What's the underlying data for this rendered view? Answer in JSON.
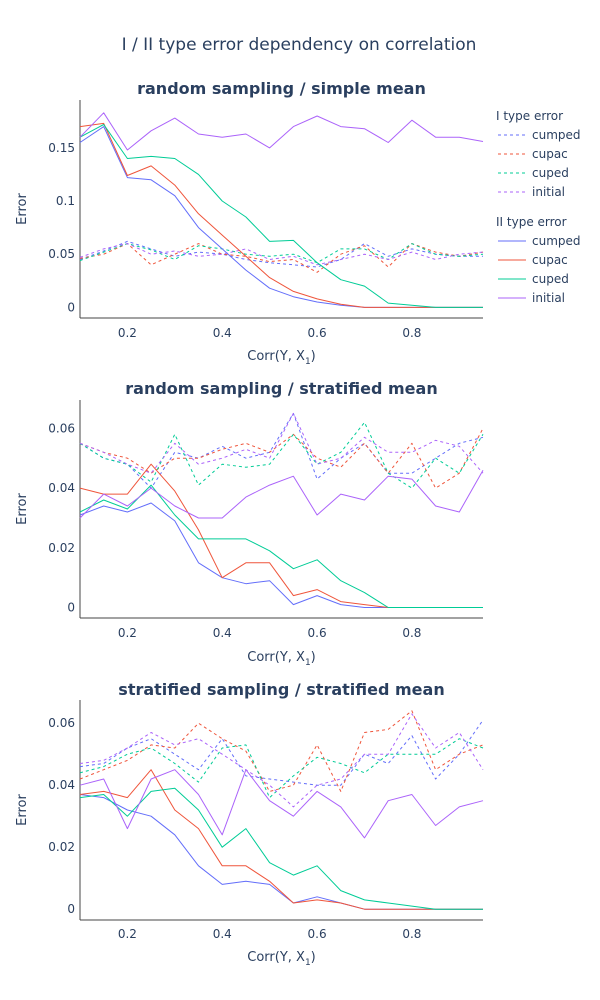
{
  "title": "I / II type error dependency on correlation",
  "colors": {
    "cumped": "#636efa",
    "cupac": "#ef553b",
    "cuped": "#00cc96",
    "initial": "#ab63fa"
  },
  "legend": {
    "group1_title": "I type error",
    "group2_title": "II type error",
    "entries": [
      "cumped",
      "cupac",
      "cuped",
      "initial"
    ],
    "placement": "right"
  },
  "chart_data": [
    {
      "type": "line",
      "title": "random sampling / simple mean",
      "xlabel_base": "Corr(Y, X",
      "xlabel_sub": "1",
      "xlabel_close": ")",
      "ylabel": "Error",
      "xlim": [
        0.1,
        0.95
      ],
      "ylim": [
        -0.01,
        0.195
      ],
      "xticks": [
        0.2,
        0.4,
        0.6,
        0.8
      ],
      "xtick_labels": [
        "0.2",
        "0.4",
        "0.6",
        "0.8"
      ],
      "yticks": [
        0,
        0.05,
        0.1,
        0.15
      ],
      "ytick_labels": [
        "0",
        "0.05",
        "0.1",
        "0.15"
      ],
      "x": [
        0.1,
        0.15,
        0.2,
        0.25,
        0.3,
        0.35,
        0.4,
        0.45,
        0.5,
        0.55,
        0.6,
        0.65,
        0.7,
        0.75,
        0.8,
        0.85,
        0.9,
        0.95
      ],
      "series": [
        {
          "name": "cumped",
          "group": "I type error",
          "dash": true,
          "values": [
            0.045,
            0.053,
            0.062,
            0.055,
            0.048,
            0.052,
            0.05,
            0.045,
            0.042,
            0.04,
            0.038,
            0.045,
            0.06,
            0.048,
            0.055,
            0.05,
            0.048,
            0.048
          ]
        },
        {
          "name": "cupac",
          "group": "I type error",
          "dash": true,
          "values": [
            0.046,
            0.05,
            0.06,
            0.04,
            0.05,
            0.06,
            0.05,
            0.048,
            0.043,
            0.045,
            0.033,
            0.05,
            0.058,
            0.038,
            0.06,
            0.052,
            0.048,
            0.052
          ]
        },
        {
          "name": "cuped",
          "group": "I type error",
          "dash": true,
          "values": [
            0.044,
            0.052,
            0.06,
            0.054,
            0.045,
            0.058,
            0.055,
            0.05,
            0.048,
            0.05,
            0.042,
            0.055,
            0.055,
            0.045,
            0.06,
            0.05,
            0.048,
            0.05
          ]
        },
        {
          "name": "initial",
          "group": "I type error",
          "dash": true,
          "values": [
            0.047,
            0.055,
            0.06,
            0.05,
            0.053,
            0.048,
            0.05,
            0.055,
            0.045,
            0.048,
            0.04,
            0.045,
            0.05,
            0.045,
            0.052,
            0.045,
            0.05,
            0.052
          ]
        },
        {
          "name": "cumped",
          "group": "II type error",
          "dash": false,
          "values": [
            0.155,
            0.17,
            0.122,
            0.12,
            0.105,
            0.075,
            0.055,
            0.035,
            0.018,
            0.01,
            0.005,
            0.002,
            0,
            0,
            0,
            0,
            0,
            0
          ]
        },
        {
          "name": "cupac",
          "group": "II type error",
          "dash": false,
          "values": [
            0.17,
            0.173,
            0.124,
            0.133,
            0.115,
            0.088,
            0.068,
            0.048,
            0.028,
            0.015,
            0.008,
            0.003,
            0,
            0,
            0,
            0,
            0,
            0
          ]
        },
        {
          "name": "cuped",
          "group": "II type error",
          "dash": false,
          "values": [
            0.16,
            0.172,
            0.14,
            0.142,
            0.14,
            0.125,
            0.1,
            0.085,
            0.062,
            0.063,
            0.042,
            0.026,
            0.02,
            0.004,
            0.002,
            0,
            0,
            0
          ]
        },
        {
          "name": "initial",
          "group": "II type error",
          "dash": false,
          "values": [
            0.16,
            0.183,
            0.148,
            0.166,
            0.178,
            0.163,
            0.16,
            0.163,
            0.15,
            0.17,
            0.18,
            0.17,
            0.168,
            0.155,
            0.176,
            0.16,
            0.16,
            0.156
          ]
        }
      ]
    },
    {
      "type": "line",
      "title": "random sampling / stratified mean",
      "xlabel_base": "Corr(Y, X",
      "xlabel_sub": "1",
      "xlabel_close": ")",
      "ylabel": "Error",
      "xlim": [
        0.1,
        0.95
      ],
      "ylim": [
        -0.0035,
        0.0695
      ],
      "xticks": [
        0.2,
        0.4,
        0.6,
        0.8
      ],
      "xtick_labels": [
        "0.2",
        "0.4",
        "0.6",
        "0.8"
      ],
      "yticks": [
        0,
        0.02,
        0.04,
        0.06
      ],
      "ytick_labels": [
        "0",
        "0.02",
        "0.04",
        "0.06"
      ],
      "x": [
        0.1,
        0.15,
        0.2,
        0.25,
        0.3,
        0.35,
        0.4,
        0.45,
        0.5,
        0.55,
        0.6,
        0.65,
        0.7,
        0.75,
        0.8,
        0.85,
        0.9,
        0.95
      ],
      "series": [
        {
          "name": "cumped",
          "group": "I type error",
          "dash": true,
          "values": [
            0.055,
            0.05,
            0.048,
            0.04,
            0.052,
            0.05,
            0.054,
            0.05,
            0.052,
            0.065,
            0.043,
            0.05,
            0.055,
            0.045,
            0.045,
            0.05,
            0.055,
            0.057
          ]
        },
        {
          "name": "cupac",
          "group": "I type error",
          "dash": true,
          "values": [
            0.055,
            0.052,
            0.05,
            0.045,
            0.05,
            0.05,
            0.053,
            0.055,
            0.052,
            0.058,
            0.05,
            0.047,
            0.055,
            0.045,
            0.055,
            0.04,
            0.045,
            0.06
          ]
        },
        {
          "name": "cuped",
          "group": "I type error",
          "dash": true,
          "values": [
            0.055,
            0.05,
            0.048,
            0.042,
            0.058,
            0.041,
            0.048,
            0.047,
            0.048,
            0.058,
            0.048,
            0.052,
            0.062,
            0.045,
            0.04,
            0.05,
            0.045,
            0.058
          ]
        },
        {
          "name": "initial",
          "group": "I type error",
          "dash": true,
          "values": [
            0.055,
            0.052,
            0.048,
            0.045,
            0.055,
            0.048,
            0.05,
            0.053,
            0.05,
            0.065,
            0.048,
            0.05,
            0.057,
            0.052,
            0.052,
            0.056,
            0.054,
            0.045
          ]
        },
        {
          "name": "cumped",
          "group": "II type error",
          "dash": false,
          "values": [
            0.031,
            0.034,
            0.032,
            0.035,
            0.029,
            0.015,
            0.01,
            0.008,
            0.009,
            0.001,
            0.004,
            0.001,
            0,
            0,
            0,
            0,
            0,
            0
          ]
        },
        {
          "name": "cupac",
          "group": "II type error",
          "dash": false,
          "values": [
            0.04,
            0.038,
            0.038,
            0.048,
            0.039,
            0.026,
            0.01,
            0.015,
            0.015,
            0.004,
            0.006,
            0.002,
            0.001,
            0,
            0,
            0,
            0,
            0
          ]
        },
        {
          "name": "cuped",
          "group": "II type error",
          "dash": false,
          "values": [
            0.032,
            0.036,
            0.033,
            0.041,
            0.031,
            0.023,
            0.023,
            0.023,
            0.019,
            0.013,
            0.016,
            0.009,
            0.005,
            0,
            0,
            0,
            0,
            0
          ]
        },
        {
          "name": "initial",
          "group": "II type error",
          "dash": false,
          "values": [
            0.03,
            0.038,
            0.034,
            0.04,
            0.034,
            0.03,
            0.03,
            0.037,
            0.041,
            0.044,
            0.031,
            0.038,
            0.036,
            0.044,
            0.043,
            0.034,
            0.032,
            0.046
          ]
        }
      ]
    },
    {
      "type": "line",
      "title": "stratified sampling / stratified mean",
      "xlabel_base": "Corr(Y, X",
      "xlabel_sub": "1",
      "xlabel_close": ")",
      "ylabel": "Error",
      "xlim": [
        0.1,
        0.95
      ],
      "ylim": [
        -0.0035,
        0.0675
      ],
      "xticks": [
        0.2,
        0.4,
        0.6,
        0.8
      ],
      "xtick_labels": [
        "0.2",
        "0.4",
        "0.6",
        "0.8"
      ],
      "yticks": [
        0,
        0.02,
        0.04,
        0.06
      ],
      "ytick_labels": [
        "0",
        "0.02",
        "0.04",
        "0.06"
      ],
      "x": [
        0.1,
        0.15,
        0.2,
        0.25,
        0.3,
        0.35,
        0.4,
        0.45,
        0.5,
        0.55,
        0.6,
        0.65,
        0.7,
        0.75,
        0.8,
        0.85,
        0.9,
        0.95
      ],
      "series": [
        {
          "name": "cumped",
          "group": "I type error",
          "dash": true,
          "values": [
            0.046,
            0.047,
            0.052,
            0.055,
            0.05,
            0.045,
            0.055,
            0.043,
            0.042,
            0.041,
            0.04,
            0.04,
            0.05,
            0.047,
            0.056,
            0.042,
            0.05,
            0.061
          ]
        },
        {
          "name": "cupac",
          "group": "I type error",
          "dash": true,
          "values": [
            0.042,
            0.045,
            0.048,
            0.053,
            0.052,
            0.06,
            0.055,
            0.051,
            0.038,
            0.04,
            0.053,
            0.038,
            0.057,
            0.058,
            0.064,
            0.045,
            0.05,
            0.053
          ]
        },
        {
          "name": "cuped",
          "group": "I type error",
          "dash": true,
          "values": [
            0.044,
            0.046,
            0.05,
            0.052,
            0.047,
            0.041,
            0.052,
            0.053,
            0.036,
            0.043,
            0.049,
            0.047,
            0.044,
            0.05,
            0.05,
            0.05,
            0.055,
            0.052
          ]
        },
        {
          "name": "initial",
          "group": "I type error",
          "dash": true,
          "values": [
            0.047,
            0.048,
            0.052,
            0.057,
            0.053,
            0.055,
            0.05,
            0.045,
            0.04,
            0.033,
            0.04,
            0.042,
            0.05,
            0.05,
            0.063,
            0.052,
            0.057,
            0.045
          ]
        },
        {
          "name": "cumped",
          "group": "II type error",
          "dash": false,
          "values": [
            0.037,
            0.036,
            0.032,
            0.03,
            0.024,
            0.014,
            0.008,
            0.009,
            0.008,
            0.002,
            0.004,
            0.002,
            0,
            0,
            0,
            0,
            0,
            0
          ]
        },
        {
          "name": "cupac",
          "group": "II type error",
          "dash": false,
          "values": [
            0.037,
            0.038,
            0.036,
            0.045,
            0.032,
            0.026,
            0.014,
            0.014,
            0.009,
            0.002,
            0.003,
            0.002,
            0,
            0,
            0,
            0,
            0,
            0
          ]
        },
        {
          "name": "cuped",
          "group": "II type error",
          "dash": false,
          "values": [
            0.036,
            0.037,
            0.03,
            0.038,
            0.039,
            0.032,
            0.02,
            0.026,
            0.015,
            0.011,
            0.014,
            0.006,
            0.003,
            0.002,
            0.001,
            0,
            0,
            0
          ]
        },
        {
          "name": "initial",
          "group": "II type error",
          "dash": false,
          "values": [
            0.04,
            0.042,
            0.026,
            0.042,
            0.045,
            0.037,
            0.024,
            0.045,
            0.035,
            0.03,
            0.038,
            0.033,
            0.023,
            0.035,
            0.037,
            0.027,
            0.033,
            0.035
          ]
        }
      ]
    }
  ]
}
